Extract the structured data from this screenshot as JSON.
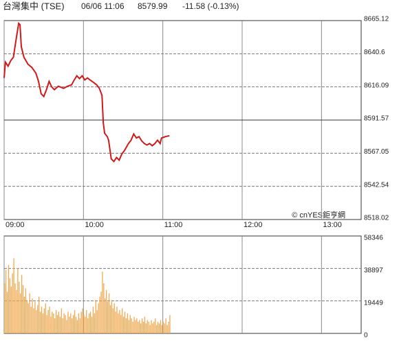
{
  "chart_data": [
    {
      "type": "line",
      "title": "台灣集中 (TSE)",
      "subtitle": "06/06 11:06",
      "last": 8579.99,
      "change": "-11.58 (-0.13%)",
      "watermark": "© cnYES鉅亨網",
      "color": "#d01818",
      "header_color": "#2aa52a",
      "xlim": [
        0,
        270
      ],
      "xticks": [
        {
          "value": 0,
          "label": "09:00"
        },
        {
          "value": 60,
          "label": "10:00"
        },
        {
          "value": 120,
          "label": "11:00"
        },
        {
          "value": 180,
          "label": "12:00"
        },
        {
          "value": 240,
          "label": "13:00"
        }
      ],
      "ylim": [
        8518.02,
        8665.12
      ],
      "yticks": [
        8518.02,
        8542.54,
        8567.05,
        8591.57,
        8616.09,
        8640.6,
        8665.12
      ],
      "reference_line": 8591.57,
      "grid": true,
      "x": [
        0,
        1,
        3,
        5,
        7,
        9,
        11,
        12,
        13,
        15,
        18,
        21,
        24,
        26,
        28,
        30,
        32,
        34,
        36,
        38,
        41,
        45,
        48,
        51,
        53,
        55,
        57,
        59,
        61,
        63,
        65,
        68,
        70,
        72,
        74,
        75,
        76,
        78,
        79,
        81,
        83,
        85,
        87,
        89,
        91,
        94,
        96,
        98,
        100,
        102,
        104,
        106,
        108,
        110,
        112,
        114,
        116,
        118,
        119,
        122,
        125
      ],
      "values": [
        8622.7,
        8634.4,
        8631.4,
        8635.5,
        8638.0,
        8650.8,
        8663.1,
        8662.1,
        8645.7,
        8638.0,
        8632.9,
        8630.4,
        8626.3,
        8620.2,
        8611.0,
        8609.0,
        8614.0,
        8620.2,
        8616.1,
        8614.0,
        8616.6,
        8615.0,
        8616.6,
        8617.6,
        8621.2,
        8624.3,
        8622.2,
        8624.3,
        8621.2,
        8622.7,
        8621.2,
        8619.1,
        8617.6,
        8615.0,
        8609.9,
        8589.5,
        8581.8,
        8579.3,
        8576.7,
        8562.9,
        8560.9,
        8563.9,
        8561.9,
        8566.5,
        8569.0,
        8574.2,
        8576.7,
        8581.3,
        8578.3,
        8579.3,
        8576.2,
        8574.2,
        8573.1,
        8574.2,
        8572.6,
        8574.2,
        8576.7,
        8574.2,
        8578.3,
        8579.3,
        8579.99
      ]
    },
    {
      "type": "bar",
      "color": "#f0a850",
      "xlim": [
        0,
        270
      ],
      "xticks": [
        0,
        60,
        120,
        180,
        240
      ],
      "ylim": [
        0,
        58346
      ],
      "yticks": [
        0,
        19449,
        38897,
        58346
      ],
      "grid": true,
      "x": [
        0,
        1,
        2,
        3,
        4,
        5,
        6,
        7,
        8,
        9,
        10,
        11,
        12,
        13,
        14,
        15,
        16,
        17,
        18,
        19,
        20,
        21,
        22,
        23,
        24,
        25,
        26,
        27,
        28,
        29,
        30,
        31,
        32,
        33,
        34,
        35,
        36,
        37,
        38,
        39,
        40,
        41,
        42,
        43,
        44,
        45,
        46,
        47,
        48,
        49,
        50,
        51,
        52,
        53,
        54,
        55,
        56,
        57,
        58,
        59,
        60,
        61,
        62,
        63,
        64,
        65,
        66,
        67,
        68,
        69,
        70,
        71,
        72,
        73,
        74,
        75,
        76,
        77,
        78,
        79,
        80,
        81,
        82,
        83,
        84,
        85,
        86,
        87,
        88,
        89,
        90,
        91,
        92,
        93,
        94,
        95,
        96,
        97,
        98,
        99,
        100,
        101,
        102,
        103,
        104,
        105,
        106,
        107,
        108,
        109,
        110,
        111,
        112,
        113,
        114,
        115,
        116,
        117,
        118,
        119,
        120,
        121,
        122,
        123,
        124,
        125
      ],
      "values": [
        30000,
        38000,
        25000,
        41000,
        33000,
        28000,
        36000,
        45000,
        30000,
        26000,
        39000,
        31000,
        24000,
        35000,
        29000,
        22000,
        27000,
        20000,
        18000,
        24000,
        16000,
        21000,
        15000,
        19000,
        14000,
        17000,
        22000,
        13000,
        16000,
        12000,
        15000,
        18000,
        11000,
        14000,
        16000,
        10000,
        13000,
        12000,
        9000,
        14000,
        11000,
        13000,
        10000,
        15000,
        9000,
        12000,
        11000,
        8000,
        13000,
        10000,
        12000,
        9000,
        11000,
        14000,
        10000,
        8000,
        12000,
        9000,
        13000,
        15000,
        11000,
        10000,
        14000,
        9000,
        12000,
        13000,
        10000,
        16000,
        12000,
        20000,
        14000,
        18000,
        22000,
        25000,
        37000,
        30000,
        21000,
        26000,
        19000,
        24000,
        17000,
        20000,
        15000,
        18000,
        13000,
        16000,
        12000,
        14000,
        11000,
        15000,
        10000,
        13000,
        9000,
        12000,
        8000,
        11000,
        9000,
        7000,
        10000,
        8000,
        9000,
        7000,
        8000,
        6000,
        9000,
        7000,
        10000,
        6000,
        8000,
        7000,
        5000,
        8000,
        6000,
        7000,
        9000,
        5000,
        7000,
        6000,
        8000,
        5000,
        7000,
        6000,
        9000,
        5000,
        7000,
        11000
      ]
    }
  ]
}
